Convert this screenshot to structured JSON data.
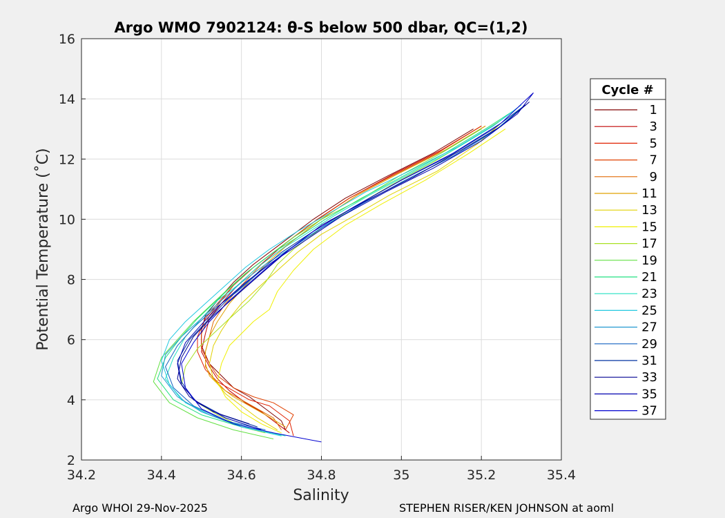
{
  "footer": {
    "left": "Argo WHOI 29-Nov-2025",
    "right": "STEPHEN RISER/KEN JOHNSON at aoml"
  },
  "chart_data": {
    "type": "line",
    "title": "Argo WMO 7902124: θ-S below 500 dbar,  QC=(1,2)",
    "xlabel": "Salinity",
    "ylabel": "Potential Temperature (˚C)",
    "xlim": [
      34.2,
      35.4
    ],
    "ylim": [
      2,
      16
    ],
    "xticks": [
      "34.2",
      "34.4",
      "34.6",
      "34.8",
      "35",
      "35.2",
      "35.4"
    ],
    "yticks": [
      "2",
      "4",
      "6",
      "8",
      "10",
      "12",
      "14",
      "16"
    ],
    "grid": true,
    "legend": {
      "title": "Cycle #",
      "placement": "right outside",
      "entries": [
        "1",
        "3",
        "5",
        "7",
        "9",
        "11",
        "13",
        "15",
        "17",
        "19",
        "21",
        "23",
        "25",
        "27",
        "29",
        "31",
        "33",
        "35",
        "37"
      ]
    },
    "colors": [
      "#800000",
      "#c00000",
      "#e02000",
      "#e04000",
      "#e06800",
      "#e0a000",
      "#e0d000",
      "#f0f000",
      "#a8e020",
      "#60e040",
      "#20e080",
      "#20e0c0",
      "#20c8e0",
      "#2098d0",
      "#1060c0",
      "#0030a0",
      "#000090",
      "#0000b0",
      "#0000d0"
    ],
    "series": [
      {
        "name": "1",
        "x": [
          34.71,
          34.7,
          34.66,
          34.62,
          34.58,
          34.55,
          34.52,
          34.5,
          34.5,
          34.51,
          34.54,
          34.58,
          34.63,
          34.7,
          34.78,
          34.86,
          34.96,
          35.08,
          35.18
        ],
        "y": [
          3.0,
          3.3,
          3.7,
          4.1,
          4.4,
          4.8,
          5.2,
          5.8,
          6.3,
          6.8,
          7.3,
          7.9,
          8.5,
          9.2,
          10.0,
          10.7,
          11.4,
          12.2,
          13.0
        ]
      },
      {
        "name": "3",
        "x": [
          34.72,
          34.69,
          34.65,
          34.61,
          34.57,
          34.54,
          34.52,
          34.5,
          34.51,
          34.52,
          34.55,
          34.59,
          34.64,
          34.71,
          34.79,
          34.87,
          34.98,
          35.1,
          35.2
        ],
        "y": [
          2.9,
          3.2,
          3.6,
          3.9,
          4.3,
          4.7,
          5.1,
          5.6,
          6.2,
          6.7,
          7.2,
          7.8,
          8.4,
          9.2,
          10.0,
          10.7,
          11.5,
          12.3,
          13.1
        ]
      },
      {
        "name": "5",
        "x": [
          34.73,
          34.72,
          34.67,
          34.62,
          34.58,
          34.54,
          34.51,
          34.49,
          34.49,
          34.51,
          34.54,
          34.58,
          34.63,
          34.7,
          34.78,
          34.87,
          34.97,
          35.09,
          35.2
        ],
        "y": [
          2.8,
          3.3,
          3.8,
          4.0,
          4.3,
          4.6,
          5.0,
          5.6,
          6.1,
          6.7,
          7.2,
          7.8,
          8.4,
          9.1,
          9.9,
          10.7,
          11.4,
          12.2,
          13.1
        ]
      },
      {
        "name": "7",
        "x": [
          34.71,
          34.73,
          34.68,
          34.63,
          34.58,
          34.54,
          34.52,
          34.5,
          34.5,
          34.52,
          34.55,
          34.58,
          34.63,
          34.7,
          34.78,
          34.87,
          34.97,
          35.09,
          35.2
        ],
        "y": [
          3.0,
          3.5,
          3.9,
          4.1,
          4.4,
          4.8,
          5.2,
          5.7,
          6.2,
          6.8,
          7.3,
          7.8,
          8.4,
          9.1,
          9.9,
          10.7,
          11.4,
          12.2,
          13.1
        ]
      },
      {
        "name": "9",
        "x": [
          34.7,
          34.68,
          34.64,
          34.6,
          34.56,
          34.53,
          34.51,
          34.51,
          34.52,
          34.53,
          34.56,
          34.6,
          34.65,
          34.72,
          34.8,
          34.89,
          34.99,
          35.11,
          35.21
        ],
        "y": [
          3.0,
          3.4,
          3.7,
          4.0,
          4.3,
          4.7,
          5.1,
          5.6,
          6.1,
          6.6,
          7.2,
          7.8,
          8.5,
          9.2,
          10.0,
          10.8,
          11.5,
          12.3,
          13.1
        ]
      },
      {
        "name": "11",
        "x": [
          34.71,
          34.66,
          34.62,
          34.58,
          34.55,
          34.52,
          34.51,
          34.51,
          34.52,
          34.54,
          34.57,
          34.61,
          34.66,
          34.72,
          34.8,
          34.89,
          34.99,
          35.11,
          35.21
        ],
        "y": [
          3.1,
          3.5,
          3.8,
          4.1,
          4.4,
          4.8,
          5.2,
          5.6,
          6.1,
          6.6,
          7.2,
          7.8,
          8.5,
          9.2,
          10.0,
          10.8,
          11.5,
          12.3,
          13.1
        ]
      },
      {
        "name": "13",
        "x": [
          34.69,
          34.64,
          34.6,
          34.56,
          34.53,
          34.52,
          34.53,
          34.55,
          34.57,
          34.6,
          34.64,
          34.69,
          34.74,
          34.8,
          34.88,
          34.97,
          35.09,
          35.19,
          35.25
        ],
        "y": [
          3.0,
          3.4,
          3.8,
          4.2,
          4.7,
          5.2,
          5.8,
          6.3,
          6.7,
          7.2,
          7.7,
          8.3,
          8.9,
          9.5,
          10.1,
          10.8,
          11.6,
          12.5,
          13.2
        ]
      },
      {
        "name": "15",
        "x": [
          34.7,
          34.65,
          34.6,
          34.56,
          34.54,
          34.55,
          34.57,
          34.6,
          34.63,
          34.67,
          34.69,
          34.73,
          34.78,
          34.86,
          34.95,
          35.06,
          35.17,
          35.26
        ],
        "y": [
          2.9,
          3.2,
          3.6,
          4.1,
          4.6,
          5.2,
          5.8,
          6.2,
          6.6,
          7.0,
          7.6,
          8.3,
          9.0,
          9.8,
          10.5,
          11.3,
          12.2,
          13.0
        ]
      },
      {
        "name": "17",
        "x": [
          34.66,
          34.6,
          34.54,
          34.49,
          34.45,
          34.46,
          34.49,
          34.53,
          34.57,
          34.62,
          34.66,
          34.69,
          34.73,
          34.8,
          34.88,
          34.97,
          35.08,
          35.18,
          35.25
        ],
        "y": [
          2.9,
          3.1,
          3.5,
          3.9,
          4.5,
          5.1,
          5.7,
          6.2,
          6.7,
          7.3,
          7.9,
          8.5,
          9.0,
          9.7,
          10.4,
          11.1,
          11.9,
          12.7,
          13.3
        ]
      },
      {
        "name": "19",
        "x": [
          34.68,
          34.58,
          34.49,
          34.42,
          34.38,
          34.4,
          34.44,
          34.48,
          34.52,
          34.56,
          34.61,
          34.67,
          34.73,
          34.8,
          34.89,
          34.99,
          35.1,
          35.2
        ],
        "y": [
          2.7,
          3.0,
          3.4,
          3.9,
          4.6,
          5.4,
          6.0,
          6.6,
          7.1,
          7.6,
          8.2,
          8.8,
          9.4,
          10.0,
          10.6,
          11.4,
          12.2,
          13.0
        ]
      },
      {
        "name": "21",
        "x": [
          34.7,
          34.6,
          34.5,
          34.43,
          34.39,
          34.41,
          34.45,
          34.49,
          34.53,
          34.57,
          34.62,
          34.68,
          34.74,
          34.81,
          34.9,
          35.0,
          35.11,
          35.21,
          35.28
        ],
        "y": [
          2.8,
          3.1,
          3.5,
          4.0,
          4.7,
          5.4,
          6.1,
          6.7,
          7.2,
          7.7,
          8.3,
          8.9,
          9.4,
          10.0,
          10.7,
          11.4,
          12.2,
          13.0,
          13.6
        ]
      },
      {
        "name": "23",
        "x": [
          34.71,
          34.61,
          34.52,
          34.45,
          34.41,
          34.43,
          34.46,
          34.5,
          34.54,
          34.59,
          34.64,
          34.7,
          34.76,
          34.83,
          34.92,
          35.02,
          35.13,
          35.23,
          35.29
        ],
        "y": [
          2.8,
          3.1,
          3.5,
          4.0,
          4.7,
          5.4,
          6.1,
          6.7,
          7.3,
          7.8,
          8.4,
          9.0,
          9.5,
          10.1,
          10.8,
          11.5,
          12.3,
          13.1,
          13.7
        ]
      },
      {
        "name": "25",
        "x": [
          34.7,
          34.6,
          34.52,
          34.46,
          34.42,
          34.4,
          34.42,
          34.46,
          34.51,
          34.56,
          34.61,
          34.67,
          34.74,
          34.82,
          34.91,
          35.02,
          35.14,
          35.24,
          35.3
        ],
        "y": [
          2.8,
          3.1,
          3.5,
          3.9,
          4.5,
          5.3,
          6.0,
          6.6,
          7.2,
          7.8,
          8.4,
          9.0,
          9.6,
          10.2,
          10.9,
          11.6,
          12.4,
          13.2,
          13.8
        ]
      },
      {
        "name": "27",
        "x": [
          34.68,
          34.58,
          34.5,
          34.44,
          34.4,
          34.41,
          34.45,
          34.5,
          34.55,
          34.6,
          34.66,
          34.73,
          34.81,
          34.9,
          35.01,
          35.13,
          35.23,
          35.3
        ],
        "y": [
          2.9,
          3.2,
          3.6,
          4.1,
          4.8,
          5.5,
          6.1,
          6.7,
          7.3,
          7.9,
          8.5,
          9.1,
          9.8,
          10.5,
          11.3,
          12.1,
          12.9,
          13.7
        ]
      },
      {
        "name": "29",
        "x": [
          34.66,
          34.56,
          34.48,
          34.43,
          34.41,
          34.44,
          34.48,
          34.53,
          34.59,
          34.65,
          34.72,
          34.8,
          34.9,
          35.01,
          35.13,
          35.24,
          35.31
        ],
        "y": [
          3.0,
          3.3,
          3.8,
          4.4,
          5.1,
          5.8,
          6.4,
          7.0,
          7.6,
          8.3,
          9.0,
          9.7,
          10.5,
          11.3,
          12.1,
          13.0,
          13.8
        ]
      },
      {
        "name": "31",
        "x": [
          34.64,
          34.55,
          34.48,
          34.45,
          34.44,
          34.47,
          34.52,
          34.57,
          34.63,
          34.7,
          34.78,
          34.88,
          35.0,
          35.12,
          35.23,
          35.31
        ],
        "y": [
          3.1,
          3.5,
          4.0,
          4.6,
          5.3,
          6.0,
          6.7,
          7.4,
          8.1,
          8.9,
          9.6,
          10.4,
          11.3,
          12.1,
          13.0,
          13.8
        ]
      },
      {
        "name": "33",
        "x": [
          34.62,
          34.53,
          34.47,
          34.44,
          34.45,
          34.48,
          34.53,
          34.59,
          34.65,
          34.72,
          34.8,
          34.91,
          35.03,
          35.15,
          35.25,
          35.32
        ],
        "y": [
          3.2,
          3.6,
          4.1,
          4.7,
          5.4,
          6.1,
          6.8,
          7.5,
          8.2,
          9.0,
          9.8,
          10.6,
          11.4,
          12.3,
          13.1,
          13.9
        ]
      },
      {
        "name": "35",
        "x": [
          34.65,
          34.56,
          34.49,
          34.45,
          34.44,
          34.46,
          34.5,
          34.55,
          34.61,
          34.68,
          34.76,
          34.85,
          34.96,
          35.08,
          35.2,
          35.29,
          35.33
        ],
        "y": [
          3.0,
          3.4,
          3.9,
          4.5,
          5.2,
          5.9,
          6.5,
          7.2,
          7.9,
          8.6,
          9.3,
          10.1,
          10.9,
          11.7,
          12.6,
          13.5,
          14.2
        ]
      },
      {
        "name": "37",
        "x": [
          34.8,
          34.68,
          34.58,
          34.5,
          34.46,
          34.45,
          34.48,
          34.52,
          34.57,
          34.63,
          34.7,
          34.78,
          34.88,
          35.0,
          35.13,
          35.25,
          35.33
        ],
        "y": [
          2.6,
          2.9,
          3.2,
          3.7,
          4.4,
          5.2,
          5.9,
          6.6,
          7.3,
          8.0,
          8.8,
          9.6,
          10.4,
          11.3,
          12.2,
          13.2,
          14.2
        ]
      }
    ]
  }
}
